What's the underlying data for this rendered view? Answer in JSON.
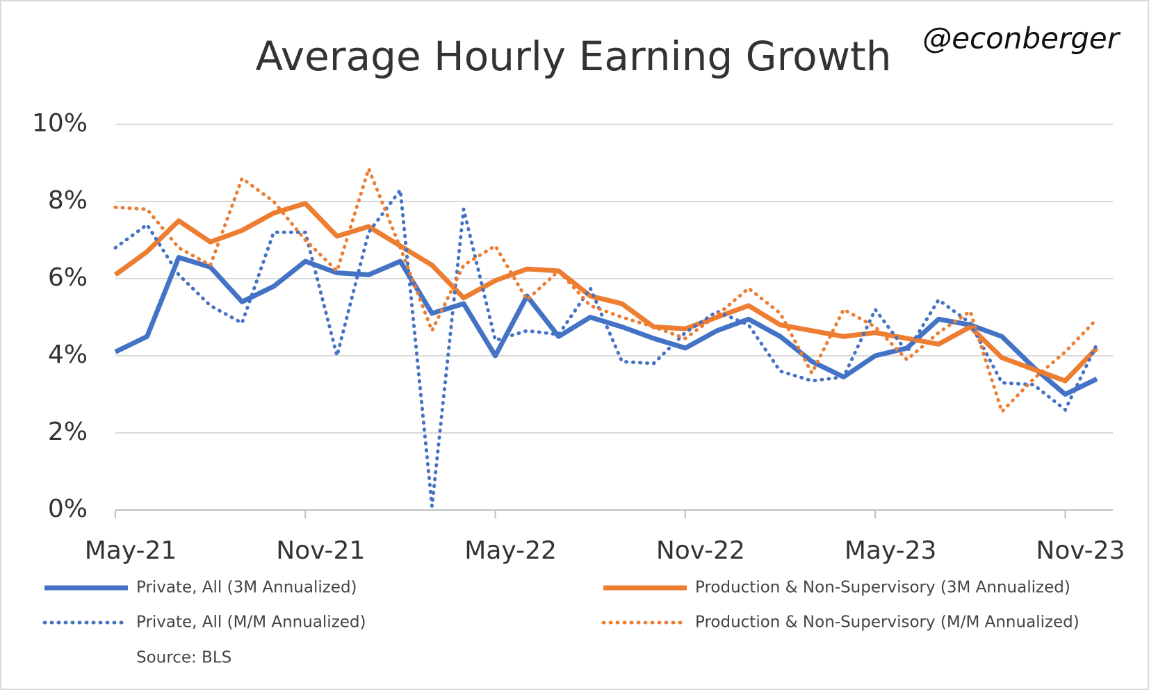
{
  "chart_data": {
    "type": "line",
    "title": "Average Hourly Earning Growth",
    "annotation": "@econberger",
    "source": "Source: BLS",
    "categories": [
      "May-21",
      null,
      null,
      null,
      null,
      null,
      "Nov-21",
      null,
      null,
      null,
      null,
      null,
      "May-22",
      null,
      null,
      null,
      null,
      null,
      "Nov-22",
      null,
      null,
      null,
      null,
      null,
      "May-23",
      null,
      null,
      null,
      null,
      null,
      "Nov-23",
      null
    ],
    "ylim": [
      0,
      10
    ],
    "yticks": [
      {
        "value": 0,
        "label": "0%"
      },
      {
        "value": 2,
        "label": "2%"
      },
      {
        "value": 4,
        "label": "4%"
      },
      {
        "value": 6,
        "label": "6%"
      },
      {
        "value": 8,
        "label": "8%"
      },
      {
        "value": 10,
        "label": "10%"
      }
    ],
    "grid": true,
    "series": [
      {
        "name": "Private, All (3M Annualized)",
        "color": "#4472c4",
        "style": "solid",
        "values": [
          4.1,
          4.5,
          6.55,
          6.3,
          5.4,
          5.8,
          6.45,
          6.15,
          6.1,
          6.45,
          5.1,
          5.35,
          4.0,
          5.55,
          4.5,
          5.0,
          4.75,
          4.45,
          4.2,
          4.65,
          4.95,
          4.5,
          3.85,
          3.45,
          4.0,
          4.2,
          4.95,
          4.8,
          4.5,
          3.7,
          3.0,
          3.4
        ]
      },
      {
        "name": "Production & Non-Supervisory (3M Annualized)",
        "color": "#ed7d31",
        "style": "solid",
        "values": [
          6.1,
          6.7,
          7.5,
          6.95,
          7.25,
          7.7,
          7.95,
          7.1,
          7.35,
          6.85,
          6.35,
          5.5,
          5.95,
          6.25,
          6.2,
          5.55,
          5.35,
          4.75,
          4.7,
          5.0,
          5.3,
          4.8,
          4.65,
          4.5,
          4.6,
          4.45,
          4.3,
          4.75,
          3.95,
          3.65,
          3.35,
          4.2
        ]
      },
      {
        "name": "Private, All (M/M Annualized)",
        "color": "#4472c4",
        "style": "dotted",
        "values": [
          6.8,
          7.4,
          6.1,
          5.3,
          4.85,
          7.2,
          7.2,
          4.0,
          7.2,
          8.3,
          0.1,
          7.8,
          4.4,
          4.65,
          4.55,
          5.75,
          3.85,
          3.8,
          4.6,
          5.15,
          4.8,
          3.6,
          3.35,
          3.45,
          5.2,
          4.1,
          5.45,
          4.85,
          3.3,
          3.25,
          2.6,
          4.3
        ]
      },
      {
        "name": "Production & Non-Supervisory (M/M Annualized)",
        "color": "#ed7d31",
        "style": "dotted",
        "values": [
          7.85,
          7.8,
          6.8,
          6.35,
          8.6,
          8.0,
          7.0,
          6.2,
          8.85,
          6.8,
          4.65,
          6.35,
          6.85,
          5.45,
          6.2,
          5.3,
          5.0,
          4.75,
          4.45,
          5.05,
          5.75,
          5.1,
          3.55,
          5.2,
          4.75,
          3.9,
          4.6,
          5.15,
          2.55,
          3.4,
          4.1,
          4.95
        ]
      }
    ]
  }
}
